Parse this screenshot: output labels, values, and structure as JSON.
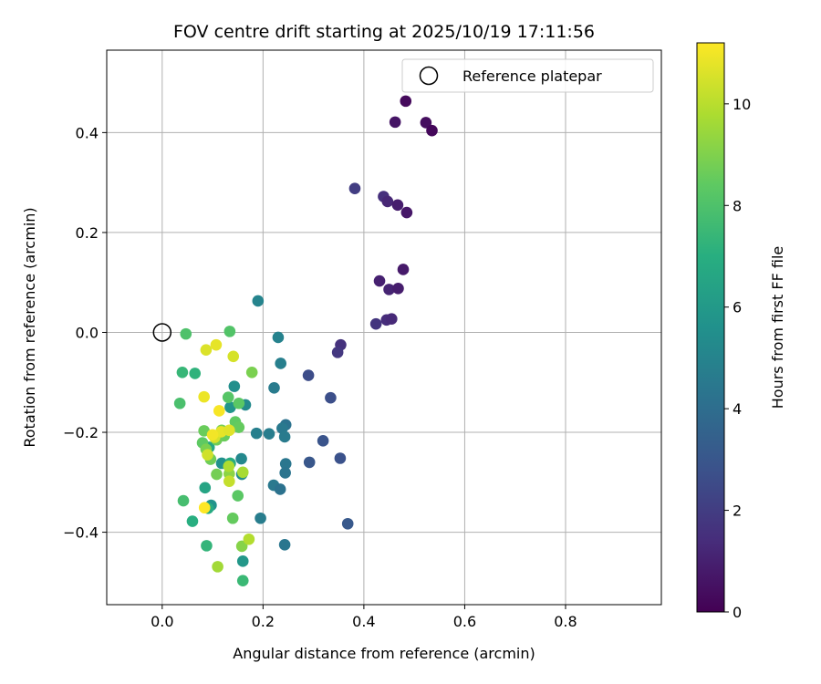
{
  "chart_data": {
    "type": "scatter",
    "title": "FOV centre drift starting at 2025/10/19 17:11:56",
    "xlabel": "Angular distance from reference (arcmin)",
    "ylabel": "Rotation from reference (arcmin)",
    "xlim": [
      -0.11,
      0.99
    ],
    "ylim": [
      -0.545,
      0.565
    ],
    "xticks": [
      0.0,
      0.2,
      0.4,
      0.6,
      0.8
    ],
    "xtick_labels": [
      "0.0",
      "0.2",
      "0.4",
      "0.6",
      "0.8"
    ],
    "yticks": [
      -0.4,
      -0.2,
      0.0,
      0.2,
      0.4
    ],
    "ytick_labels": [
      "−0.4",
      "−0.2",
      "0.0",
      "0.2",
      "0.4"
    ],
    "grid": true,
    "colormap": "viridis",
    "colormap_stops": [
      "#440154",
      "#472d7b",
      "#3b528b",
      "#2c728e",
      "#21918c",
      "#28ae80",
      "#5ec962",
      "#addc30",
      "#fde725"
    ],
    "colorbar": {
      "label": "Hours from first FF file",
      "range": [
        0,
        11.2
      ],
      "ticks": [
        0,
        2,
        4,
        6,
        8,
        10
      ],
      "tick_labels": [
        "0",
        "2",
        "4",
        "6",
        "8",
        "10"
      ]
    },
    "legend": {
      "label": "Reference platepar",
      "location": "upper-right"
    },
    "reference_point": [
      0.0,
      0.0
    ],
    "points": [
      {
        "x": 0.483,
        "y": 0.463,
        "c": 0.3
      },
      {
        "x": 0.462,
        "y": 0.421,
        "c": 0.6
      },
      {
        "x": 0.523,
        "y": 0.42,
        "c": 0.4
      },
      {
        "x": 0.535,
        "y": 0.404,
        "c": 0.2
      },
      {
        "x": 0.382,
        "y": 0.288,
        "c": 2.0
      },
      {
        "x": 0.439,
        "y": 0.272,
        "c": 1.5
      },
      {
        "x": 0.447,
        "y": 0.262,
        "c": 1.2
      },
      {
        "x": 0.467,
        "y": 0.255,
        "c": 0.9
      },
      {
        "x": 0.485,
        "y": 0.24,
        "c": 0.7
      },
      {
        "x": 0.478,
        "y": 0.126,
        "c": 0.8
      },
      {
        "x": 0.431,
        "y": 0.103,
        "c": 1.0
      },
      {
        "x": 0.45,
        "y": 0.086,
        "c": 1.1
      },
      {
        "x": 0.468,
        "y": 0.088,
        "c": 0.9
      },
      {
        "x": 0.424,
        "y": 0.017,
        "c": 1.7
      },
      {
        "x": 0.445,
        "y": 0.025,
        "c": 1.4
      },
      {
        "x": 0.455,
        "y": 0.027,
        "c": 1.3
      },
      {
        "x": 0.354,
        "y": -0.025,
        "c": 1.6
      },
      {
        "x": 0.348,
        "y": -0.04,
        "c": 1.8
      },
      {
        "x": 0.29,
        "y": -0.086,
        "c": 2.6
      },
      {
        "x": 0.334,
        "y": -0.131,
        "c": 2.7
      },
      {
        "x": 0.319,
        "y": -0.217,
        "c": 2.9
      },
      {
        "x": 0.292,
        "y": -0.26,
        "c": 3.0
      },
      {
        "x": 0.353,
        "y": -0.252,
        "c": 2.8
      },
      {
        "x": 0.368,
        "y": -0.383,
        "c": 3.1
      },
      {
        "x": 0.245,
        "y": -0.185,
        "c": 4.2
      },
      {
        "x": 0.238,
        "y": -0.192,
        "c": 4.5
      },
      {
        "x": 0.243,
        "y": -0.209,
        "c": 4.6
      },
      {
        "x": 0.212,
        "y": -0.203,
        "c": 4.7
      },
      {
        "x": 0.187,
        "y": -0.202,
        "c": 4.8
      },
      {
        "x": 0.245,
        "y": -0.263,
        "c": 4.4
      },
      {
        "x": 0.244,
        "y": -0.281,
        "c": 4.3
      },
      {
        "x": 0.221,
        "y": -0.306,
        "c": 4.5
      },
      {
        "x": 0.234,
        "y": -0.314,
        "c": 4.2
      },
      {
        "x": 0.243,
        "y": -0.425,
        "c": 4.4
      },
      {
        "x": 0.195,
        "y": -0.372,
        "c": 4.7
      },
      {
        "x": 0.23,
        "y": -0.01,
        "c": 4.9
      },
      {
        "x": 0.235,
        "y": -0.062,
        "c": 4.8
      },
      {
        "x": 0.222,
        "y": -0.111,
        "c": 4.6
      },
      {
        "x": 0.19,
        "y": 0.063,
        "c": 5.0
      },
      {
        "x": 0.165,
        "y": -0.145,
        "c": 5.3
      },
      {
        "x": 0.143,
        "y": -0.108,
        "c": 5.5
      },
      {
        "x": 0.135,
        "y": -0.15,
        "c": 5.8
      },
      {
        "x": 0.157,
        "y": -0.253,
        "c": 5.2
      },
      {
        "x": 0.158,
        "y": -0.284,
        "c": 5.4
      },
      {
        "x": 0.118,
        "y": -0.262,
        "c": 5.6
      },
      {
        "x": 0.097,
        "y": -0.346,
        "c": 5.7
      },
      {
        "x": 0.16,
        "y": -0.458,
        "c": 5.9
      },
      {
        "x": 0.085,
        "y": -0.311,
        "c": 6.5
      },
      {
        "x": 0.091,
        "y": -0.352,
        "c": 6.8
      },
      {
        "x": 0.06,
        "y": -0.378,
        "c": 7.0
      },
      {
        "x": 0.093,
        "y": -0.23,
        "c": 6.6
      },
      {
        "x": 0.135,
        "y": -0.262,
        "c": 6.9
      },
      {
        "x": 0.088,
        "y": -0.427,
        "c": 7.3
      },
      {
        "x": 0.16,
        "y": -0.497,
        "c": 7.5
      },
      {
        "x": 0.065,
        "y": -0.082,
        "c": 7.2
      },
      {
        "x": 0.04,
        "y": -0.08,
        "c": 7.4
      },
      {
        "x": 0.042,
        "y": -0.337,
        "c": 7.8
      },
      {
        "x": 0.035,
        "y": -0.142,
        "c": 7.9
      },
      {
        "x": 0.047,
        "y": -0.003,
        "c": 8.0
      },
      {
        "x": 0.134,
        "y": 0.002,
        "c": 8.1
      },
      {
        "x": 0.131,
        "y": -0.13,
        "c": 8.2
      },
      {
        "x": 0.152,
        "y": -0.142,
        "c": 8.3
      },
      {
        "x": 0.145,
        "y": -0.179,
        "c": 8.4
      },
      {
        "x": 0.152,
        "y": -0.19,
        "c": 8.5
      },
      {
        "x": 0.123,
        "y": -0.207,
        "c": 8.6
      },
      {
        "x": 0.108,
        "y": -0.215,
        "c": 8.7
      },
      {
        "x": 0.118,
        "y": -0.196,
        "c": 8.8
      },
      {
        "x": 0.083,
        "y": -0.197,
        "c": 8.6
      },
      {
        "x": 0.08,
        "y": -0.221,
        "c": 8.4
      },
      {
        "x": 0.087,
        "y": -0.234,
        "c": 8.9
      },
      {
        "x": 0.096,
        "y": -0.254,
        "c": 8.7
      },
      {
        "x": 0.108,
        "y": -0.284,
        "c": 8.8
      },
      {
        "x": 0.133,
        "y": -0.283,
        "c": 9.2
      },
      {
        "x": 0.15,
        "y": -0.327,
        "c": 8.3
      },
      {
        "x": 0.14,
        "y": -0.372,
        "c": 8.5
      },
      {
        "x": 0.158,
        "y": -0.428,
        "c": 9.1
      },
      {
        "x": 0.178,
        "y": -0.08,
        "c": 8.9
      },
      {
        "x": 0.11,
        "y": -0.469,
        "c": 9.6
      },
      {
        "x": 0.132,
        "y": -0.268,
        "c": 9.8
      },
      {
        "x": 0.16,
        "y": -0.28,
        "c": 9.7
      },
      {
        "x": 0.172,
        "y": -0.414,
        "c": 9.9
      },
      {
        "x": 0.133,
        "y": -0.298,
        "c": 10.2
      },
      {
        "x": 0.104,
        "y": -0.21,
        "c": 10.5
      },
      {
        "x": 0.117,
        "y": -0.199,
        "c": 10.8
      },
      {
        "x": 0.133,
        "y": -0.196,
        "c": 10.7
      },
      {
        "x": 0.1,
        "y": -0.205,
        "c": 11.0
      },
      {
        "x": 0.083,
        "y": -0.129,
        "c": 10.9
      },
      {
        "x": 0.113,
        "y": -0.157,
        "c": 11.1
      },
      {
        "x": 0.084,
        "y": -0.351,
        "c": 11.2
      },
      {
        "x": 0.09,
        "y": -0.245,
        "c": 10.4
      },
      {
        "x": 0.087,
        "y": -0.035,
        "c": 10.6
      },
      {
        "x": 0.107,
        "y": -0.025,
        "c": 10.8
      },
      {
        "x": 0.141,
        "y": -0.048,
        "c": 10.5
      }
    ]
  }
}
